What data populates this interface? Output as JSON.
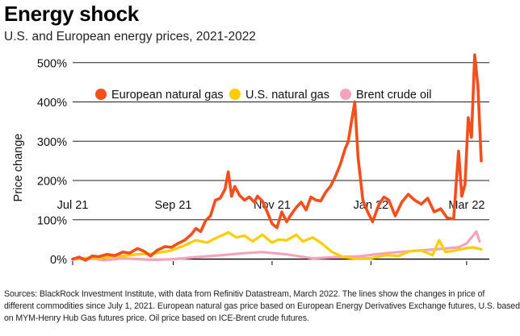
{
  "header": {
    "title": "Energy shock",
    "subtitle": "U.S. and European energy prices, 2021-2022"
  },
  "chart_data": {
    "type": "line",
    "title": "Energy shock",
    "subtitle": "U.S. and European energy prices, 2021-2022",
    "xlabel": "",
    "ylabel": "Price change",
    "x_tick_labels": [
      "Jul 21",
      "Sep 21",
      "Nov 21",
      "Jan 22",
      "Mar 22"
    ],
    "y_tick_labels": [
      "0%",
      "100%",
      "200%",
      "300%",
      "400%",
      "500%"
    ],
    "y_ticks": [
      0,
      100,
      200,
      300,
      400,
      500
    ],
    "ylim": [
      -5,
      520
    ],
    "xlim": [
      "2021-07-01",
      "2022-03-15"
    ],
    "grid": "horizontal",
    "legend_position": "top-left",
    "series": [
      {
        "name": "European natural gas",
        "color": "#F24F1D",
        "points": [
          [
            "2021-07-01",
            0
          ],
          [
            "2021-07-05",
            5
          ],
          [
            "2021-07-09",
            -3
          ],
          [
            "2021-07-13",
            8
          ],
          [
            "2021-07-17",
            6
          ],
          [
            "2021-07-22",
            12
          ],
          [
            "2021-07-27",
            9
          ],
          [
            "2021-08-01",
            18
          ],
          [
            "2021-08-05",
            15
          ],
          [
            "2021-08-10",
            27
          ],
          [
            "2021-08-14",
            20
          ],
          [
            "2021-08-18",
            8
          ],
          [
            "2021-08-22",
            22
          ],
          [
            "2021-08-27",
            32
          ],
          [
            "2021-08-31",
            30
          ],
          [
            "2021-09-04",
            40
          ],
          [
            "2021-09-08",
            48
          ],
          [
            "2021-09-12",
            62
          ],
          [
            "2021-09-15",
            78
          ],
          [
            "2021-09-18",
            70
          ],
          [
            "2021-09-21",
            98
          ],
          [
            "2021-09-24",
            110
          ],
          [
            "2021-09-27",
            150
          ],
          [
            "2021-09-30",
            155
          ],
          [
            "2021-10-03",
            178
          ],
          [
            "2021-10-05",
            222
          ],
          [
            "2021-10-07",
            160
          ],
          [
            "2021-10-09",
            185
          ],
          [
            "2021-10-12",
            162
          ],
          [
            "2021-10-15",
            150
          ],
          [
            "2021-10-18",
            158
          ],
          [
            "2021-10-21",
            145
          ],
          [
            "2021-10-23",
            160
          ],
          [
            "2021-10-26",
            148
          ],
          [
            "2021-10-29",
            120
          ],
          [
            "2021-11-01",
            90
          ],
          [
            "2021-11-04",
            80
          ],
          [
            "2021-11-07",
            120
          ],
          [
            "2021-11-10",
            95
          ],
          [
            "2021-11-13",
            115
          ],
          [
            "2021-11-16",
            132
          ],
          [
            "2021-11-19",
            145
          ],
          [
            "2021-11-22",
            125
          ],
          [
            "2021-11-25",
            158
          ],
          [
            "2021-11-28",
            150
          ],
          [
            "2021-12-01",
            148
          ],
          [
            "2021-12-04",
            170
          ],
          [
            "2021-12-07",
            185
          ],
          [
            "2021-12-10",
            210
          ],
          [
            "2021-12-13",
            240
          ],
          [
            "2021-12-16",
            280
          ],
          [
            "2021-12-18",
            300
          ],
          [
            "2021-12-20",
            350
          ],
          [
            "2021-12-22",
            400
          ],
          [
            "2021-12-24",
            260
          ],
          [
            "2021-12-27",
            150
          ],
          [
            "2021-12-30",
            120
          ],
          [
            "2022-01-02",
            95
          ],
          [
            "2022-01-06",
            140
          ],
          [
            "2022-01-09",
            158
          ],
          [
            "2022-01-12",
            150
          ],
          [
            "2022-01-16",
            110
          ],
          [
            "2022-01-20",
            145
          ],
          [
            "2022-01-24",
            165
          ],
          [
            "2022-01-28",
            150
          ],
          [
            "2022-02-01",
            140
          ],
          [
            "2022-02-05",
            155
          ],
          [
            "2022-02-09",
            120
          ],
          [
            "2022-02-13",
            128
          ],
          [
            "2022-02-17",
            105
          ],
          [
            "2022-02-21",
            102
          ],
          [
            "2022-02-24",
            275
          ],
          [
            "2022-02-26",
            160
          ],
          [
            "2022-02-28",
            190
          ],
          [
            "2022-03-02",
            360
          ],
          [
            "2022-03-04",
            310
          ],
          [
            "2022-03-06",
            520
          ],
          [
            "2022-03-08",
            440
          ],
          [
            "2022-03-10",
            250
          ]
        ]
      },
      {
        "name": "U.S. natural gas",
        "color": "#FFCC00",
        "points": [
          [
            "2021-07-01",
            0
          ],
          [
            "2021-07-10",
            3
          ],
          [
            "2021-07-20",
            4
          ],
          [
            "2021-08-01",
            8
          ],
          [
            "2021-08-10",
            12
          ],
          [
            "2021-08-20",
            14
          ],
          [
            "2021-08-31",
            22
          ],
          [
            "2021-09-08",
            35
          ],
          [
            "2021-09-15",
            48
          ],
          [
            "2021-09-22",
            42
          ],
          [
            "2021-09-28",
            55
          ],
          [
            "2021-10-01",
            60
          ],
          [
            "2021-10-05",
            68
          ],
          [
            "2021-10-10",
            55
          ],
          [
            "2021-10-15",
            60
          ],
          [
            "2021-10-20",
            45
          ],
          [
            "2021-10-26",
            62
          ],
          [
            "2021-11-01",
            42
          ],
          [
            "2021-11-05",
            50
          ],
          [
            "2021-11-10",
            48
          ],
          [
            "2021-11-16",
            62
          ],
          [
            "2021-11-20",
            45
          ],
          [
            "2021-11-26",
            55
          ],
          [
            "2021-12-01",
            42
          ],
          [
            "2021-12-08",
            18
          ],
          [
            "2021-12-15",
            5
          ],
          [
            "2021-12-22",
            2
          ],
          [
            "2022-01-01",
            2
          ],
          [
            "2022-01-10",
            10
          ],
          [
            "2022-01-18",
            8
          ],
          [
            "2022-01-25",
            20
          ],
          [
            "2022-02-01",
            22
          ],
          [
            "2022-02-08",
            10
          ],
          [
            "2022-02-12",
            48
          ],
          [
            "2022-02-16",
            18
          ],
          [
            "2022-02-22",
            22
          ],
          [
            "2022-03-01",
            28
          ],
          [
            "2022-03-05",
            30
          ],
          [
            "2022-03-10",
            25
          ]
        ]
      },
      {
        "name": "Brent crude oil",
        "color": "#F5A3BD",
        "points": [
          [
            "2021-07-01",
            0
          ],
          [
            "2021-07-15",
            1
          ],
          [
            "2021-07-20",
            -3
          ],
          [
            "2021-08-01",
            2
          ],
          [
            "2021-08-20",
            -2
          ],
          [
            "2021-09-01",
            0
          ],
          [
            "2021-09-15",
            5
          ],
          [
            "2021-10-01",
            10
          ],
          [
            "2021-10-15",
            15
          ],
          [
            "2021-10-26",
            18
          ],
          [
            "2021-11-10",
            12
          ],
          [
            "2021-11-26",
            2
          ],
          [
            "2021-12-10",
            5
          ],
          [
            "2021-12-25",
            7
          ],
          [
            "2022-01-10",
            15
          ],
          [
            "2022-01-25",
            20
          ],
          [
            "2022-02-10",
            25
          ],
          [
            "2022-02-24",
            30
          ],
          [
            "2022-03-01",
            40
          ],
          [
            "2022-03-04",
            55
          ],
          [
            "2022-03-07",
            70
          ],
          [
            "2022-03-09",
            45
          ]
        ]
      }
    ]
  },
  "footnote": {
    "lines": [
      "Sources: BlackRock Investment Institute, with data from Refinitiv Datastream, March 2022. The lines show the changes in price of",
      "different commodities since July 1, 2021. European natural gas price based on European Energy Derivatives Exchange futures, U.S. based",
      "on MYM-Henry Hub Gas futures price. Oil price based on ICE-Brent crude futures."
    ]
  }
}
